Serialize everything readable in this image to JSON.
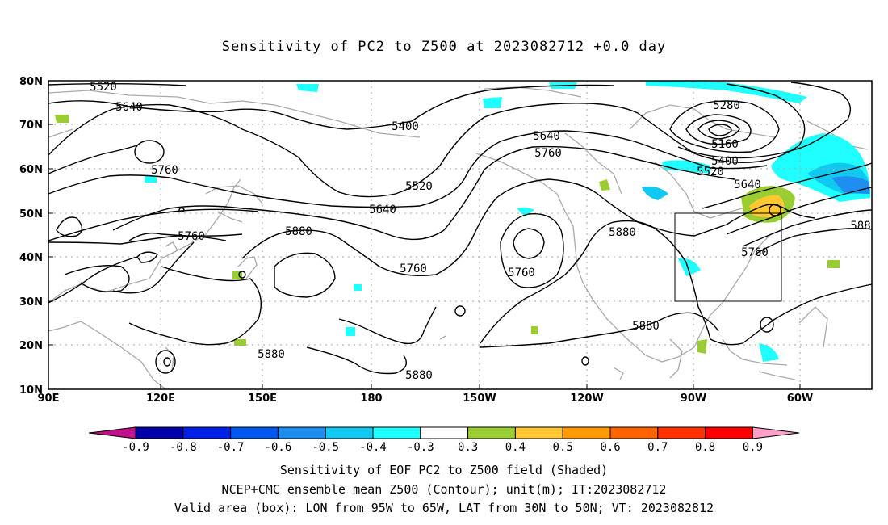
{
  "title": "Sensitivity of PC2 to Z500 at 2023082712 +0.0 day",
  "map": {
    "lon_labels": [
      "90E",
      "120E",
      "150E",
      "180",
      "150W",
      "120W",
      "90W",
      "60W"
    ],
    "lat_labels": [
      "80N",
      "70N",
      "60N",
      "50N",
      "40N",
      "30N",
      "20N",
      "10N"
    ],
    "lon_range": [
      90,
      310
    ],
    "lat_range": [
      10,
      80
    ],
    "valid_box": {
      "lon_w": -95,
      "lon_e": -65,
      "lat_s": 30,
      "lat_n": 50
    },
    "contour_labels": [
      "5520",
      "5640",
      "5400",
      "5640",
      "5760",
      "5280",
      "5160",
      "5400",
      "5520",
      "5640",
      "5760",
      "5520",
      "5640",
      "5880",
      "5760",
      "5760",
      "5880",
      "5880",
      "5880",
      "5760",
      "5880",
      "5880",
      "588"
    ]
  },
  "colorbar": {
    "colors": [
      "#c0108c",
      "#0000a8",
      "#0020e8",
      "#0058f0",
      "#1e8ff0",
      "#10c8f0",
      "#20ffff",
      "#ffffff",
      "#9acd32",
      "#ffc832",
      "#ff9b00",
      "#ff6400",
      "#ff3200",
      "#ff0000",
      "#ffa0c8"
    ],
    "labels": [
      "-0.9",
      "-0.8",
      "-0.7",
      "-0.6",
      "-0.5",
      "-0.4",
      "-0.3",
      "0.3",
      "0.4",
      "0.5",
      "0.6",
      "0.7",
      "0.8",
      "0.9"
    ]
  },
  "captions": {
    "line1": "Sensitivity of EOF PC2 to Z500 field (Shaded)",
    "line2": "NCEP+CMC ensemble mean Z500 (Contour); unit(m); IT:2023082712",
    "line3": "Valid area (box): LON from 95W to 65W, LAT from 30N to 50N; VT: 2023082812"
  }
}
